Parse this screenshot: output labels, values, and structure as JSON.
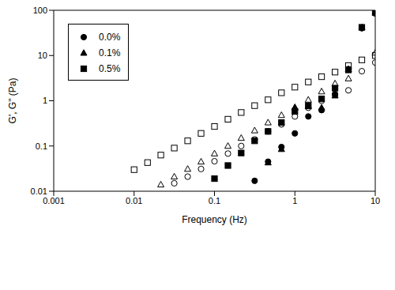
{
  "chart_data": {
    "type": "scatter",
    "x_label": "Frequency (Hz)",
    "y_label": "G', G\" (Pa)",
    "log": true,
    "grid": false,
    "legend": "upper left",
    "xlim": [
      0.001,
      10
    ],
    "xticks": [
      0.001,
      0.01,
      0.1,
      1,
      10
    ],
    "ylim": [
      0.01,
      100
    ],
    "yticks": [
      0.01,
      0.1,
      1,
      10,
      100
    ],
    "series": [
      {
        "name": "0.0%",
        "color": "#000000",
        "marker": "circle",
        "G'": {
          "x": [
            0.316,
            0.464,
            0.681,
            1,
            1.47,
            2.15,
            3.16,
            4.64,
            6.81,
            10
          ],
          "values": [
            0.017,
            0.045,
            0.095,
            0.19,
            0.45,
            0.62,
            1.4,
            5,
            40,
            85
          ]
        },
        "G''": {
          "x": [
            0.0316,
            0.0464,
            0.0681,
            0.1,
            0.147,
            0.215,
            0.316,
            0.464,
            0.681,
            1,
            1.47,
            2.15,
            3.16,
            4.64,
            6.81,
            10
          ],
          "values": [
            0.015,
            0.021,
            0.031,
            0.046,
            0.068,
            0.1,
            0.14,
            0.21,
            0.3,
            0.45,
            0.7,
            1.0,
            1.35,
            1.7,
            4.5,
            7
          ]
        }
      },
      {
        "name": "0.1%",
        "color": "#000000",
        "marker": "triangle",
        "G'": {
          "x": [
            0.464,
            0.681,
            1,
            1.47,
            2.15,
            3.16,
            4.64,
            6.81,
            10
          ],
          "values": [
            0.043,
            0.085,
            0.7,
            0.75,
            0.7,
            1.3,
            5,
            42,
            88
          ]
        },
        "G''": {
          "x": [
            0.0215,
            0.0316,
            0.0464,
            0.0681,
            0.1,
            0.147,
            0.215,
            0.316,
            0.464,
            0.681,
            1,
            1.47,
            2.15,
            3.16,
            4.64,
            10
          ],
          "values": [
            0.014,
            0.021,
            0.031,
            0.045,
            0.068,
            0.1,
            0.15,
            0.22,
            0.33,
            0.48,
            0.72,
            1.05,
            1.6,
            2.4,
            3.1,
            11.5
          ]
        }
      },
      {
        "name": "0.5%",
        "color": "#000000",
        "marker": "square",
        "G'": {
          "x": [
            0.1,
            0.147,
            0.215,
            0.316,
            0.464,
            0.681,
            1,
            1.47,
            2.15,
            3.16,
            4.64,
            6.81,
            10
          ],
          "values": [
            0.019,
            0.037,
            0.07,
            0.13,
            0.21,
            0.33,
            0.58,
            0.78,
            1.1,
            1.9,
            4.8,
            42,
            90
          ]
        },
        "G''": {
          "x": [
            0.01,
            0.0147,
            0.0215,
            0.0316,
            0.0464,
            0.0681,
            0.1,
            0.147,
            0.215,
            0.316,
            0.464,
            0.681,
            1,
            1.47,
            2.15,
            3.16,
            4.64,
            6.81,
            10
          ],
          "values": [
            0.03,
            0.043,
            0.063,
            0.09,
            0.13,
            0.19,
            0.27,
            0.39,
            0.55,
            0.78,
            1.05,
            1.5,
            2.0,
            2.6,
            3.4,
            4.3,
            6.0,
            8.0,
            10
          ]
        }
      }
    ]
  }
}
